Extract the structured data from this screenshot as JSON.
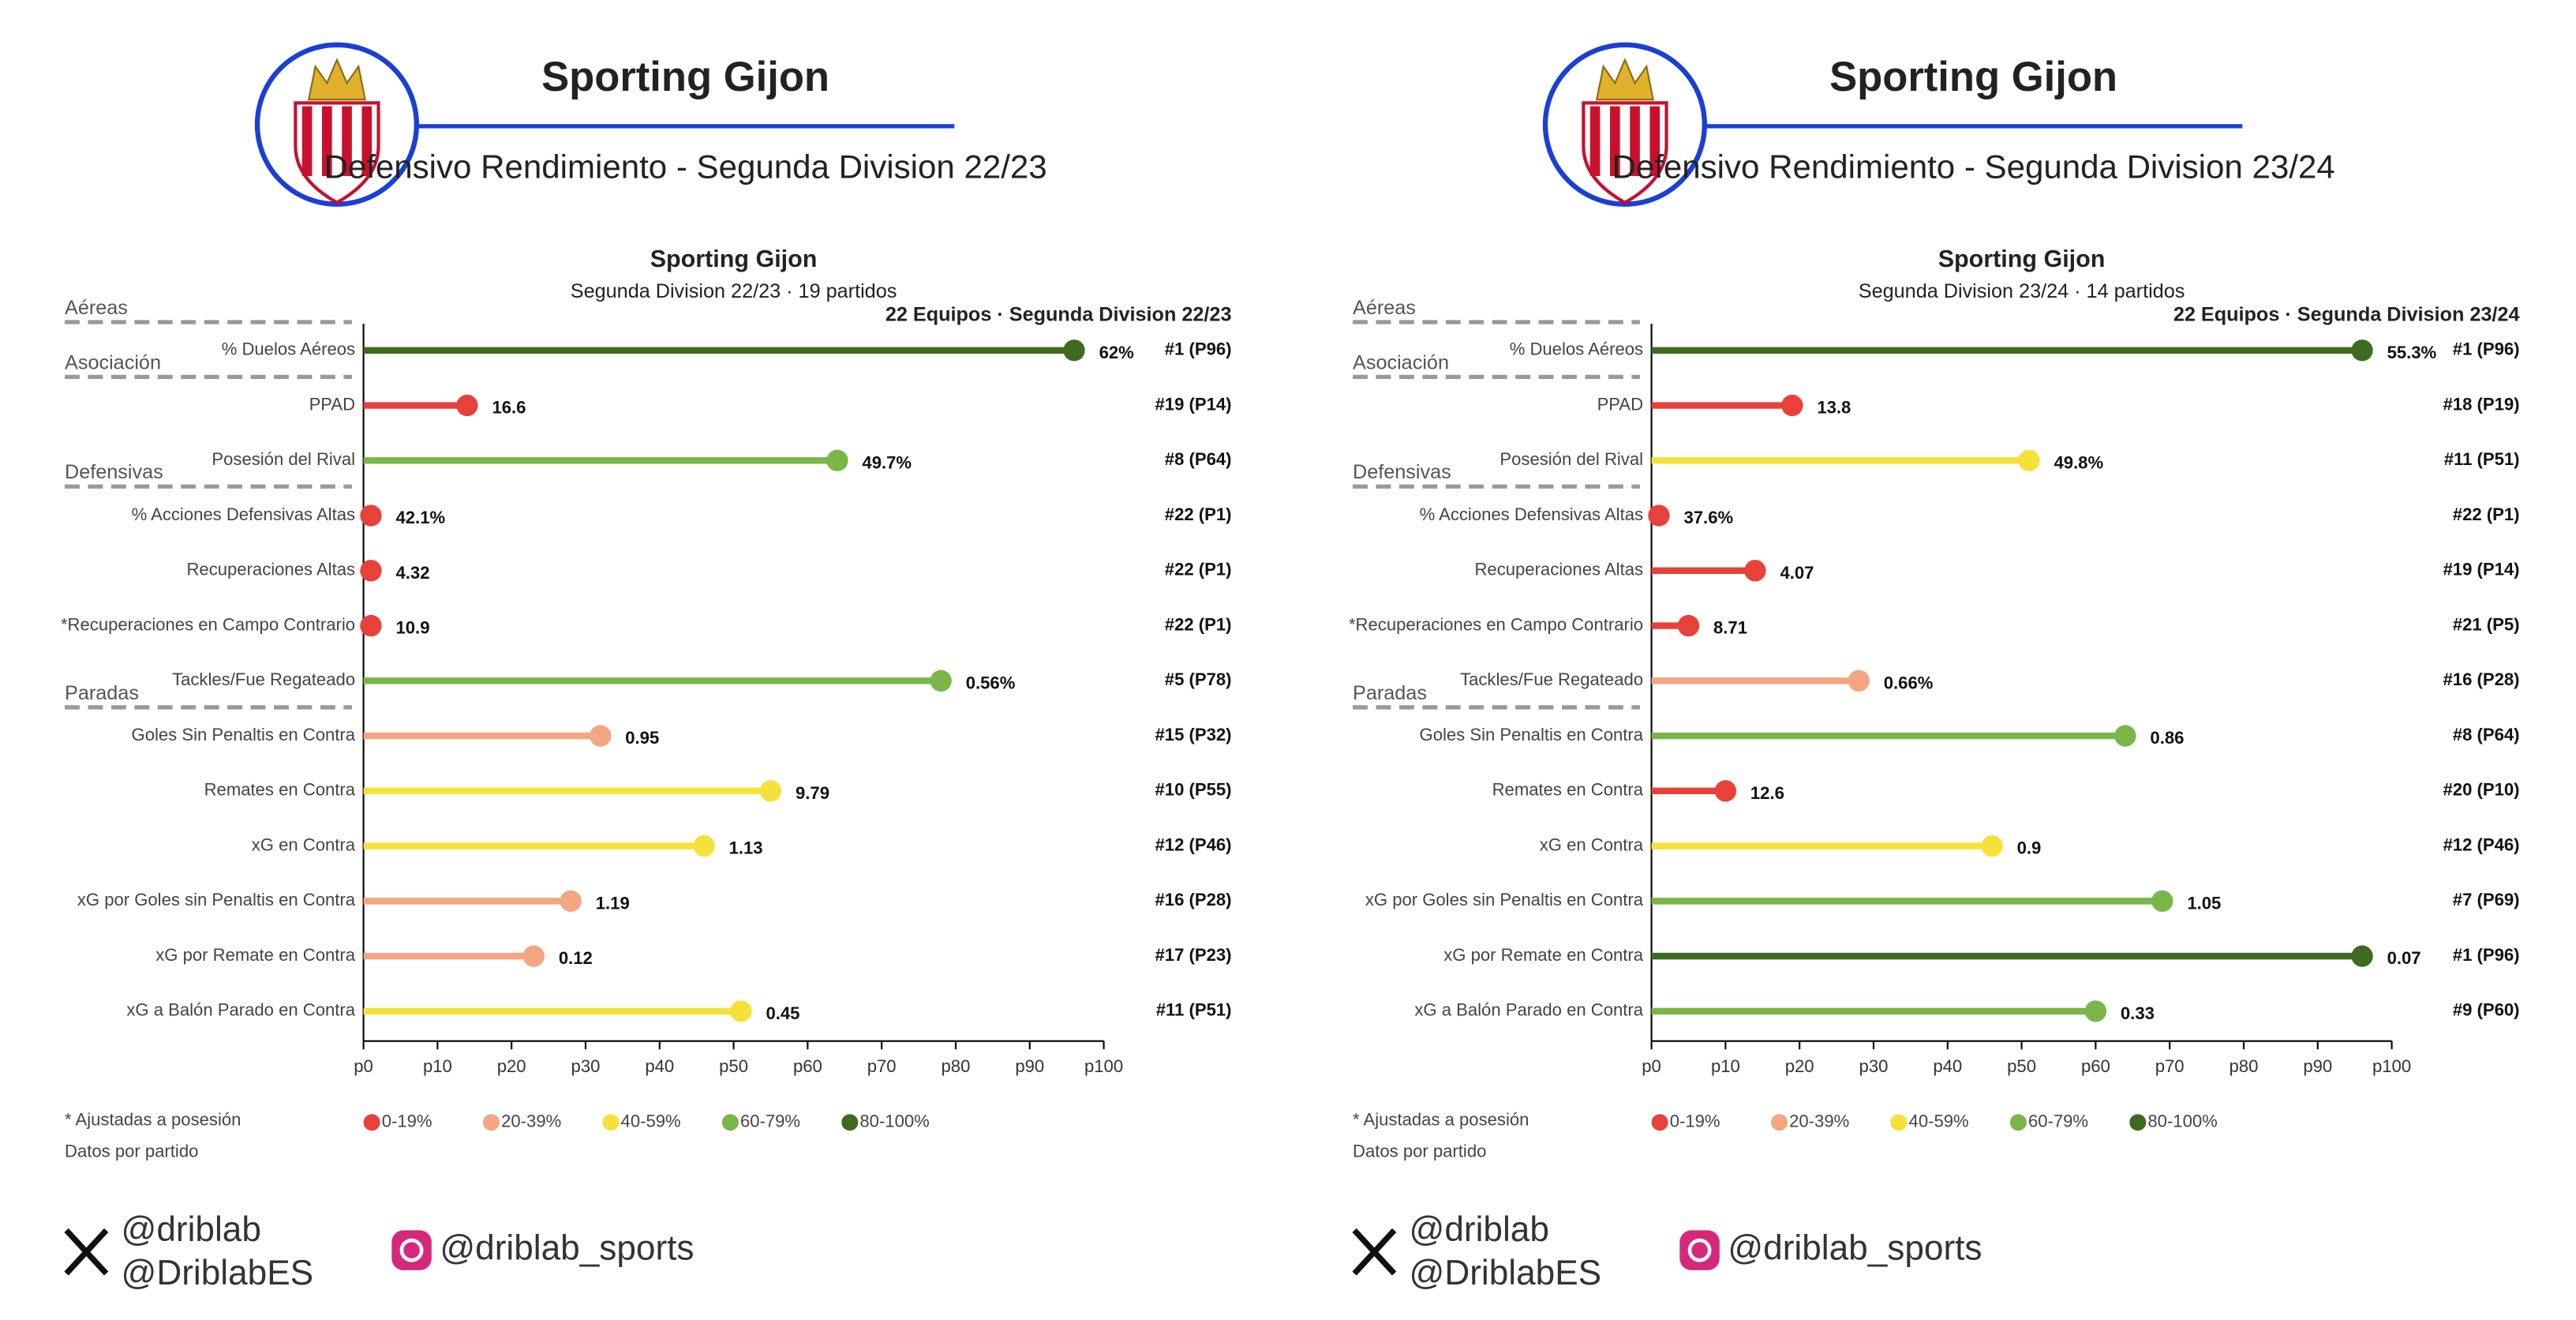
{
  "chart_data": [
    {
      "type": "lollipop",
      "title": "Sporting Gijon",
      "subtitle": "Defensivo Rendimiento - Segunda Division 22/23",
      "plot_title": "Sporting Gijon",
      "plot_subtitle": "Segunda Division 22/23 · 19 partidos",
      "rank_header": "22 Equipos · Segunda Division 22/23",
      "groups": [
        "Aéreas",
        "Asociación",
        "Defensivas",
        "Paradas"
      ],
      "categories": [
        "% Duelos Aéreos",
        "PPAD",
        "Posesión del Rival",
        "% Acciones Defensivas Altas",
        "Recuperaciones Altas",
        "*Recuperaciones en Campo Contrario",
        "Tackles/Fue Regateado",
        "Goles Sin Penaltis en Contra",
        "Remates en Contra",
        "xG en Contra",
        "xG por Goles sin Penaltis en Contra",
        "xG por Remate en Contra",
        "xG a Balón Parado en Contra"
      ],
      "values": [
        96,
        14,
        64,
        1,
        1,
        1,
        78,
        32,
        55,
        46,
        28,
        23,
        51
      ],
      "colors": [
        "#3f6b21",
        "#e8413a",
        "#7ab648",
        "#e8413a",
        "#e8413a",
        "#e8413a",
        "#7ab648",
        "#f4a582",
        "#f6e13a",
        "#f6e13a",
        "#f4a582",
        "#f4a582",
        "#f6e13a"
      ],
      "metric_labels": [
        "62%",
        "16.6",
        "49.7%",
        "42.1%",
        "4.32",
        "10.9",
        "0.56%",
        "0.95",
        "9.79",
        "1.13",
        "1.19",
        "0.12",
        "0.45"
      ],
      "ranks": [
        "#1 (P96)",
        "#19 (P14)",
        "#8 (P64)",
        "#22 (P1)",
        "#22 (P1)",
        "#22 (P1)",
        "#5 (P78)",
        "#15 (P32)",
        "#10 (P55)",
        "#12 (P46)",
        "#16 (P28)",
        "#17 (P23)",
        "#11 (P51)"
      ],
      "xlim": [
        0,
        100
      ],
      "xticks": [
        {
          "value": 0,
          "label": "p0"
        },
        {
          "value": 10,
          "label": "p10"
        },
        {
          "value": 20,
          "label": "p20"
        },
        {
          "value": 30,
          "label": "p30"
        },
        {
          "value": 40,
          "label": "p40"
        },
        {
          "value": 50,
          "label": "p50"
        },
        {
          "value": 60,
          "label": "p60"
        },
        {
          "value": 70,
          "label": "p70"
        },
        {
          "value": 80,
          "label": "p80"
        },
        {
          "value": 90,
          "label": "p90"
        },
        {
          "value": 100,
          "label": "p100"
        }
      ],
      "legend": [
        {
          "name": "0-19%",
          "color": "#e8413a"
        },
        {
          "name": "20-39%",
          "color": "#f4a582"
        },
        {
          "name": "40-59%",
          "color": "#f6e13a"
        },
        {
          "name": "60-79%",
          "color": "#7ab648"
        },
        {
          "name": "80-100%",
          "color": "#3f6b21"
        }
      ],
      "notes": [
        "* Ajustadas a posesión",
        "Datos por partido"
      ],
      "social": {
        "x": [
          "@driblab",
          "@DriblabES"
        ],
        "instagram": "@driblab_sports"
      }
    },
    {
      "type": "lollipop",
      "title": "Sporting Gijon",
      "subtitle": "Defensivo Rendimiento - Segunda Division 23/24",
      "plot_title": "Sporting Gijon",
      "plot_subtitle": "Segunda Division 23/24 · 14 partidos",
      "rank_header": "22 Equipos · Segunda Division 23/24",
      "groups": [
        "Aéreas",
        "Asociación",
        "Defensivas",
        "Paradas"
      ],
      "categories": [
        "% Duelos Aéreos",
        "PPAD",
        "Posesión del Rival",
        "% Acciones Defensivas Altas",
        "Recuperaciones Altas",
        "*Recuperaciones en Campo Contrario",
        "Tackles/Fue Regateado",
        "Goles Sin Penaltis en Contra",
        "Remates en Contra",
        "xG en Contra",
        "xG por Goles sin Penaltis en Contra",
        "xG por Remate en Contra",
        "xG a Balón Parado en Contra"
      ],
      "values": [
        96,
        19,
        51,
        1,
        14,
        5,
        28,
        64,
        10,
        46,
        69,
        96,
        60
      ],
      "colors": [
        "#3f6b21",
        "#e8413a",
        "#f6e13a",
        "#e8413a",
        "#e8413a",
        "#e8413a",
        "#f4a582",
        "#7ab648",
        "#e8413a",
        "#f6e13a",
        "#7ab648",
        "#3f6b21",
        "#7ab648"
      ],
      "metric_labels": [
        "55.3%",
        "13.8",
        "49.8%",
        "37.6%",
        "4.07",
        "8.71",
        "0.66%",
        "0.86",
        "12.6",
        "0.9",
        "1.05",
        "0.07",
        "0.33"
      ],
      "ranks": [
        "#1 (P96)",
        "#18 (P19)",
        "#11 (P51)",
        "#22 (P1)",
        "#19 (P14)",
        "#21 (P5)",
        "#16 (P28)",
        "#8 (P64)",
        "#20 (P10)",
        "#12 (P46)",
        "#7 (P69)",
        "#1 (P96)",
        "#9 (P60)"
      ],
      "xlim": [
        0,
        100
      ],
      "xticks": [
        {
          "value": 0,
          "label": "p0"
        },
        {
          "value": 10,
          "label": "p10"
        },
        {
          "value": 20,
          "label": "p20"
        },
        {
          "value": 30,
          "label": "p30"
        },
        {
          "value": 40,
          "label": "p40"
        },
        {
          "value": 50,
          "label": "p50"
        },
        {
          "value": 60,
          "label": "p60"
        },
        {
          "value": 70,
          "label": "p70"
        },
        {
          "value": 80,
          "label": "p80"
        },
        {
          "value": 90,
          "label": "p90"
        },
        {
          "value": 100,
          "label": "p100"
        }
      ],
      "legend": [
        {
          "name": "0-19%",
          "color": "#e8413a"
        },
        {
          "name": "20-39%",
          "color": "#f4a582"
        },
        {
          "name": "40-59%",
          "color": "#f6e13a"
        },
        {
          "name": "60-79%",
          "color": "#7ab648"
        },
        {
          "name": "80-100%",
          "color": "#3f6b21"
        }
      ],
      "notes": [
        "* Ajustadas a posesión",
        "Datos por partido"
      ],
      "social": {
        "x": [
          "@driblab",
          "@DriblabES"
        ],
        "instagram": "@driblab_sports"
      }
    }
  ]
}
